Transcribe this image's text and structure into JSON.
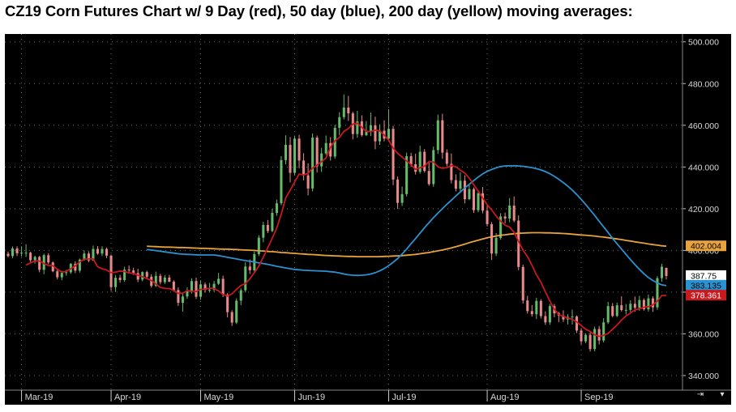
{
  "title": "CZ19 Corn Futures Chart w/ 9 Day (red), 50 day (blue), 200 day (yellow) moving averages:",
  "colors": {
    "background": "#000000",
    "up_candle": "#66bb6a",
    "down_candle": "#e88a8a",
    "ma9": "#c8191e",
    "ma50": "#2a92d0",
    "ma200": "#e8a33c",
    "grid": "#6a6a6a"
  },
  "chart_data": {
    "type": "candlestick",
    "title": "CZ19 Corn Futures Chart w/ 9 Day (red), 50 day (blue), 200 day (yellow) moving averages:",
    "ylim": [
      333,
      503
    ],
    "y_ticks": [
      "500.000",
      "480.000",
      "460.000",
      "440.000",
      "420.000",
      "400.000",
      "380.000",
      "360.000",
      "340.000"
    ],
    "x_ticks": [
      "Mar-19",
      "Apr-19",
      "May-19",
      "Jun-19",
      "Jul-19",
      "Aug-19",
      "Sep-19"
    ],
    "grid": true,
    "last_values": {
      "close": "387.75",
      "ma200": "402.004",
      "ma50": "383.135",
      "ma9": "378.361"
    },
    "candles": [
      [
        398.4,
        399.4,
        396.7,
        397.3
      ],
      [
        397.3,
        401.9,
        396.3,
        400.9
      ],
      [
        400.9,
        402.0,
        397.3,
        398.6
      ],
      [
        398.6,
        402.0,
        397.1,
        398.9
      ],
      [
        398.9,
        403.0,
        396.9,
        398.9
      ],
      [
        398.9,
        399.4,
        394.4,
        395.3
      ],
      [
        395.3,
        397.5,
        393.7,
        396.9
      ],
      [
        396.9,
        397.4,
        389.5,
        390.7
      ],
      [
        390.7,
        398.4,
        388.6,
        397.7
      ],
      [
        397.7,
        398.7,
        393.4,
        394.2
      ],
      [
        394.2,
        394.7,
        389.5,
        390.0
      ],
      [
        390.0,
        391.1,
        386.1,
        387.1
      ],
      [
        387.1,
        390.2,
        385.7,
        389.2
      ],
      [
        389.2,
        390.7,
        387.9,
        389.5
      ],
      [
        389.5,
        393.9,
        388.8,
        393.6
      ],
      [
        393.6,
        394.8,
        389.1,
        390.3
      ],
      [
        390.3,
        396.1,
        389.4,
        395.6
      ],
      [
        395.6,
        400.0,
        395.0,
        398.5
      ],
      [
        398.5,
        399.6,
        394.3,
        395.2
      ],
      [
        395.2,
        402.3,
        394.9,
        400.7
      ],
      [
        400.7,
        402.1,
        397.9,
        398.5
      ],
      [
        398.5,
        402.0,
        397.3,
        400.7
      ],
      [
        400.7,
        401.4,
        396.3,
        397.5
      ],
      [
        397.5,
        398.0,
        380.6,
        382.4
      ],
      [
        382.4,
        388.2,
        380.1,
        386.9
      ],
      [
        386.9,
        388.3,
        384.5,
        385.8
      ],
      [
        385.8,
        392.2,
        384.9,
        390.8
      ],
      [
        390.8,
        392.8,
        389.4,
        390.4
      ],
      [
        390.4,
        391.7,
        388.3,
        389.1
      ],
      [
        389.1,
        391.2,
        384.8,
        386.0
      ],
      [
        386.0,
        390.0,
        385.2,
        389.6
      ],
      [
        389.6,
        390.3,
        386.1,
        387.4
      ],
      [
        387.4,
        388.5,
        382.2,
        383.0
      ],
      [
        383.0,
        389.8,
        382.4,
        387.8
      ],
      [
        387.8,
        388.8,
        383.7,
        384.8
      ],
      [
        384.8,
        388.1,
        383.9,
        387.0
      ],
      [
        387.0,
        388.3,
        384.8,
        385.0
      ],
      [
        385.0,
        385.7,
        380.2,
        381.0
      ],
      [
        381.0,
        382.3,
        373.4,
        374.9
      ],
      [
        374.9,
        379.9,
        370.7,
        377.9
      ],
      [
        377.9,
        382.3,
        376.8,
        380.5
      ],
      [
        380.5,
        386.6,
        379.3,
        385.3
      ],
      [
        385.3,
        387.0,
        376.7,
        377.8
      ],
      [
        377.8,
        385.7,
        376.3,
        383.7
      ],
      [
        383.7,
        384.6,
        379.8,
        381.1
      ],
      [
        381.1,
        384.4,
        379.8,
        381.2
      ],
      [
        381.2,
        385.4,
        380.2,
        384.0
      ],
      [
        384.0,
        389.2,
        383.4,
        386.4
      ],
      [
        386.4,
        387.9,
        377.7,
        378.8
      ],
      [
        378.8,
        379.6,
        367.9,
        370.4
      ],
      [
        370.4,
        371.3,
        363.8,
        365.4
      ],
      [
        365.4,
        377.0,
        364.7,
        375.9
      ],
      [
        375.9,
        381.8,
        373.8,
        380.9
      ],
      [
        380.9,
        394.3,
        379.9,
        392.3
      ],
      [
        392.3,
        395.7,
        388.7,
        390.5
      ],
      [
        390.5,
        399.5,
        389.7,
        398.2
      ],
      [
        398.2,
        407.3,
        397.3,
        406.1
      ],
      [
        406.1,
        413.7,
        403.9,
        412.2
      ],
      [
        412.2,
        414.6,
        408.3,
        409.3
      ],
      [
        409.3,
        419.9,
        408.7,
        418.0
      ],
      [
        418.0,
        424.4,
        416.6,
        422.6
      ],
      [
        422.6,
        445.2,
        421.7,
        443.3
      ],
      [
        443.3,
        455.2,
        441.2,
        450.6
      ],
      [
        450.6,
        454.4,
        432.6,
        437.2
      ],
      [
        437.2,
        455.0,
        436.2,
        453.6
      ],
      [
        453.6,
        455.4,
        439.4,
        443.1
      ],
      [
        443.1,
        446.6,
        433.6,
        436.0
      ],
      [
        436.0,
        441.8,
        426.4,
        429.7
      ],
      [
        429.7,
        456.1,
        428.3,
        454.1
      ],
      [
        454.1,
        455.1,
        437.4,
        440.3
      ],
      [
        440.3,
        449.2,
        437.6,
        446.5
      ],
      [
        446.5,
        455.1,
        445.7,
        451.5
      ],
      [
        451.5,
        454.3,
        443.1,
        445.0
      ],
      [
        445.0,
        460.2,
        443.9,
        458.8
      ],
      [
        458.8,
        466.3,
        455.3,
        463.9
      ],
      [
        463.9,
        474.8,
        462.8,
        468.5
      ],
      [
        468.5,
        474.1,
        462.1,
        465.7
      ],
      [
        465.7,
        466.5,
        453.2,
        455.8
      ],
      [
        455.8,
        466.9,
        454.0,
        461.9
      ],
      [
        461.9,
        464.8,
        454.6,
        455.3
      ],
      [
        455.3,
        462.0,
        454.8,
        456.9
      ],
      [
        456.9,
        466.1,
        454.8,
        460.0
      ],
      [
        460.0,
        464.1,
        448.5,
        452.3
      ],
      [
        452.3,
        460.5,
        450.6,
        457.4
      ],
      [
        457.4,
        462.4,
        452.3,
        453.6
      ],
      [
        453.6,
        467.7,
        452.6,
        458.3
      ],
      [
        458.3,
        459.7,
        431.3,
        434.0
      ],
      [
        434.0,
        435.4,
        419.9,
        422.8
      ],
      [
        422.8,
        430.6,
        421.3,
        427.0
      ],
      [
        427.0,
        446.9,
        425.9,
        445.2
      ],
      [
        445.2,
        446.8,
        440.0,
        441.3
      ],
      [
        441.3,
        446.4,
        436.4,
        437.7
      ],
      [
        437.7,
        450.2,
        436.8,
        447.3
      ],
      [
        447.3,
        448.6,
        437.3,
        438.1
      ],
      [
        438.1,
        442.9,
        431.0,
        431.8
      ],
      [
        431.8,
        449.8,
        430.5,
        448.1
      ],
      [
        448.1,
        465.1,
        446.3,
        462.4
      ],
      [
        462.4,
        465.5,
        443.9,
        446.9
      ],
      [
        446.9,
        448.5,
        440.3,
        441.5
      ],
      [
        441.5,
        446.5,
        432.1,
        433.7
      ],
      [
        433.7,
        436.5,
        428.3,
        429.6
      ],
      [
        429.6,
        437.5,
        428.0,
        433.4
      ],
      [
        433.4,
        436.0,
        422.6,
        424.6
      ],
      [
        424.6,
        431.3,
        424.1,
        429.4
      ],
      [
        429.4,
        430.2,
        418.0,
        419.3
      ],
      [
        419.3,
        428.7,
        418.3,
        427.4
      ],
      [
        427.4,
        430.4,
        417.8,
        419.1
      ],
      [
        419.1,
        422.2,
        411.5,
        412.6
      ],
      [
        412.6,
        413.6,
        395.4,
        398.5
      ],
      [
        398.5,
        408.3,
        397.3,
        406.0
      ],
      [
        406.0,
        417.9,
        405.1,
        416.3
      ],
      [
        416.3,
        418.1,
        412.9,
        415.3
      ],
      [
        415.3,
        425.1,
        413.5,
        421.5
      ],
      [
        421.5,
        425.9,
        413.5,
        414.3
      ],
      [
        414.3,
        416.8,
        390.5,
        392.1
      ],
      [
        392.1,
        393.2,
        374.5,
        376.0
      ],
      [
        376.0,
        378.2,
        369.7,
        370.9
      ],
      [
        370.9,
        373.8,
        368.3,
        369.4
      ],
      [
        369.4,
        377.3,
        367.1,
        375.8
      ],
      [
        375.8,
        376.6,
        367.4,
        368.5
      ],
      [
        368.5,
        370.8,
        364.3,
        365.5
      ],
      [
        365.5,
        374.3,
        364.3,
        373.3
      ],
      [
        373.3,
        374.3,
        367.9,
        369.8
      ],
      [
        369.8,
        370.5,
        365.7,
        368.7
      ],
      [
        368.7,
        371.3,
        365.7,
        366.9
      ],
      [
        366.9,
        369.4,
        364.5,
        368.2
      ],
      [
        368.2,
        371.6,
        364.5,
        368.3
      ],
      [
        368.3,
        368.8,
        360.4,
        361.6
      ],
      [
        361.6,
        362.7,
        354.9,
        356.4
      ],
      [
        356.4,
        360.3,
        355.5,
        359.5
      ],
      [
        359.5,
        360.6,
        351.5,
        352.7
      ],
      [
        352.7,
        363.5,
        351.6,
        362.3
      ],
      [
        362.3,
        363.8,
        354.9,
        356.8
      ],
      [
        356.8,
        367.5,
        355.9,
        365.5
      ],
      [
        365.5,
        375.3,
        364.7,
        373.3
      ],
      [
        373.3,
        374.8,
        367.9,
        368.6
      ],
      [
        368.6,
        375.0,
        368.0,
        373.7
      ],
      [
        373.7,
        378.0,
        370.7,
        371.4
      ],
      [
        371.4,
        374.3,
        369.3,
        371.5
      ],
      [
        371.5,
        376.1,
        370.4,
        374.4
      ],
      [
        374.4,
        377.9,
        370.6,
        372.5
      ],
      [
        372.5,
        378.2,
        371.0,
        376.2
      ],
      [
        376.2,
        377.0,
        371.1,
        371.8
      ],
      [
        371.8,
        378.8,
        370.7,
        377.0
      ],
      [
        377.0,
        378.0,
        370.5,
        372.7
      ],
      [
        372.7,
        387.7,
        371.6,
        386.7
      ],
      [
        386.7,
        393.6,
        385.0,
        392.2
      ],
      [
        391.6,
        391.8,
        386.1,
        387.75
      ]
    ],
    "ma9": [
      393.0,
      394.0,
      395.0,
      394.9,
      393.7,
      392.8,
      392.7,
      391.0,
      389.6,
      390.0,
      391.2,
      392.6,
      394.5,
      395.8,
      395.9,
      395.9,
      392.2,
      391.2,
      390.6,
      389.3,
      389.6,
      390.1,
      389.9,
      389.2,
      389.0,
      388.1,
      387.4,
      386.5,
      385.6,
      383.9,
      382.3,
      381.8,
      381.7,
      380.8,
      379.4,
      379.5,
      380.7,
      380.5,
      380.3,
      381.3,
      381.5,
      381.9,
      381.7,
      380.6,
      378.9,
      378.1,
      379.2,
      381.3,
      383.2,
      384.1,
      386.4,
      389.3,
      392.5,
      396.8,
      401.3,
      405.9,
      410.7,
      417.4,
      425.2,
      428.9,
      432.8,
      436.6,
      436.2,
      437.0,
      439.5,
      440.9,
      442.6,
      444.3,
      449.4,
      452.6,
      454.2,
      457.1,
      458.4,
      460.6,
      461.0,
      459.0,
      457.1,
      457.0,
      457.7,
      457.3,
      455.3,
      452.9,
      449.1,
      446.5,
      444.8,
      442.9,
      441.1,
      438.9,
      439.6,
      440.4,
      442.6,
      442.4,
      440.1,
      439.4,
      439.7,
      440.7,
      440.1,
      438.5,
      437.1,
      434.6,
      431.5,
      428.4,
      425.1,
      421.9,
      419.4,
      416.5,
      414.1,
      412.1,
      411.2,
      408.7,
      404.4,
      400.2,
      397.0,
      392.9,
      388.3,
      384.8,
      380.1,
      375.7,
      371.8,
      369.2,
      368.4,
      367.6,
      366.9,
      365.7,
      364.0,
      362.2,
      361.1,
      359.6,
      358.8,
      359.3,
      360.2,
      362.2,
      364.2,
      366.6,
      368.6,
      370.0,
      371.5,
      372.0,
      372.8,
      373.0,
      373.9,
      375.7,
      378.4,
      378.4
    ],
    "ma50": [
      400.4,
      400.2,
      399.9,
      399.6,
      399.3,
      399.0,
      398.7,
      398.4,
      398.2,
      398.1,
      398.0,
      397.9,
      397.8,
      397.8,
      397.8,
      397.8,
      397.5,
      397.1,
      396.7,
      396.3,
      395.9,
      395.5,
      395.1,
      394.8,
      394.4,
      394.0,
      393.7,
      393.3,
      392.9,
      392.4,
      392.0,
      391.6,
      391.2,
      390.9,
      390.7,
      390.5,
      390.4,
      390.3,
      390.2,
      390.1,
      390.0,
      389.8,
      389.6,
      389.2,
      388.7,
      388.3,
      388.1,
      388.0,
      388.1,
      388.3,
      388.7,
      389.3,
      390.2,
      391.3,
      392.7,
      394.3,
      396.1,
      398.3,
      400.6,
      403.2,
      405.7,
      408.3,
      410.9,
      413.3,
      415.7,
      417.9,
      420.0,
      422.1,
      424.1,
      426.1,
      428.0,
      430.0,
      431.7,
      433.5,
      435.2,
      436.7,
      437.9,
      438.8,
      439.6,
      440.2,
      440.5,
      440.6,
      440.6,
      440.5,
      440.3,
      440.0,
      439.7,
      439.2,
      438.6,
      437.8,
      436.8,
      435.5,
      434.1,
      432.5,
      430.8,
      428.9,
      426.8,
      424.5,
      422.0,
      419.4,
      416.8,
      414.0,
      411.3,
      408.6,
      405.8,
      403.2,
      400.6,
      398.1,
      395.6,
      393.2,
      390.9,
      388.8,
      387.0,
      385.6,
      384.4,
      383.5,
      383.1
    ],
    "ma200": [
      402.0,
      401.9,
      401.8,
      401.7,
      401.6,
      401.6,
      401.5,
      401.4,
      401.4,
      401.3,
      401.2,
      401.1,
      401.0,
      401.0,
      400.9,
      400.8,
      400.7,
      400.6,
      400.6,
      400.5,
      400.4,
      400.3,
      400.2,
      400.1,
      400.0,
      399.8,
      399.7,
      399.5,
      399.4,
      399.2,
      399.0,
      398.9,
      398.7,
      398.6,
      398.4,
      398.3,
      398.1,
      398.0,
      397.9,
      397.7,
      397.6,
      397.5,
      397.4,
      397.3,
      397.2,
      397.1,
      397.1,
      397.0,
      397.0,
      397.0,
      397.0,
      397.0,
      397.0,
      397.1,
      397.2,
      397.3,
      397.4,
      397.5,
      397.7,
      397.9,
      398.1,
      398.4,
      398.7,
      399.0,
      399.4,
      399.8,
      400.2,
      400.7,
      401.2,
      401.8,
      402.4,
      403.0,
      403.7,
      404.3,
      404.9,
      405.5,
      406.1,
      406.5,
      406.9,
      407.3,
      407.5,
      407.8,
      408.0,
      408.2,
      408.3,
      408.4,
      408.5,
      408.5,
      408.5,
      408.4,
      408.4,
      408.3,
      408.2,
      408.1,
      408.0,
      407.8,
      407.6,
      407.4,
      407.3,
      407.1,
      406.9,
      406.6,
      406.4,
      406.1,
      405.8,
      405.5,
      405.2,
      404.8,
      404.5,
      404.1,
      403.8,
      403.5,
      403.1,
      402.8,
      402.5,
      402.2,
      402.0
    ]
  }
}
